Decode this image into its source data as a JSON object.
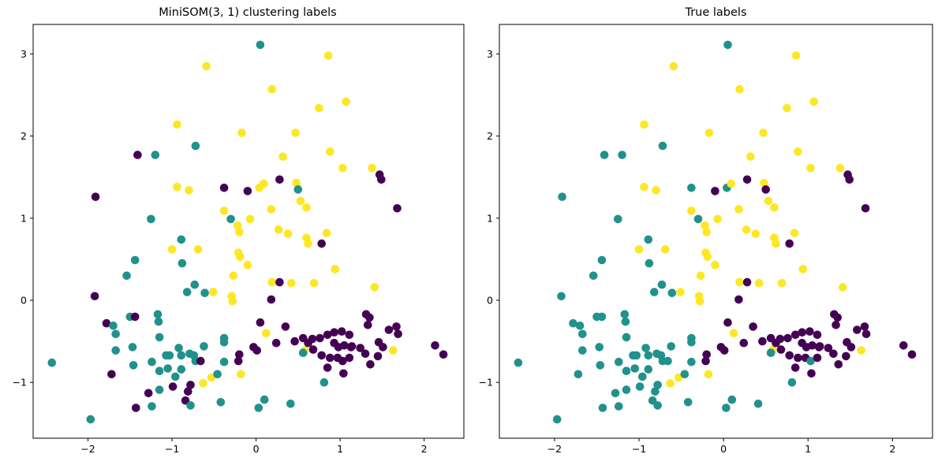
{
  "figure": {
    "background": "#ffffff"
  },
  "chart_data": {
    "type": "scatter",
    "panels": [
      {
        "id": "som",
        "title": "MiniSOM(3, 1) clustering labels",
        "color_field": 2
      },
      {
        "id": "true",
        "title": "True labels",
        "color_field": 3
      }
    ],
    "xlim": [
      -2.653,
      2.473
    ],
    "ylim": [
      -1.679,
      3.359
    ],
    "x_ticks": [
      -2,
      -1,
      0,
      1,
      2
    ],
    "y_ticks": [
      -1,
      0,
      1,
      2,
      3
    ],
    "grid": false,
    "legend": "none",
    "class_colors": [
      "#440154",
      "#21918c",
      "#fde725"
    ],
    "class_names": [
      "label-0-purple",
      "label-1-teal",
      "label-2-yellow"
    ],
    "point_format": [
      "x",
      "y",
      "som_label",
      "true_label"
    ],
    "points": [
      [
        -1.41,
        1.77,
        0,
        1
      ],
      [
        -1.2,
        1.77,
        1,
        1
      ],
      [
        0.05,
        3.11,
        1,
        1
      ],
      [
        -0.59,
        2.85,
        2,
        2
      ],
      [
        0.19,
        2.57,
        2,
        2
      ],
      [
        -0.94,
        2.14,
        2,
        2
      ],
      [
        -0.17,
        2.04,
        2,
        2
      ],
      [
        0.47,
        2.04,
        2,
        2
      ],
      [
        -0.72,
        1.88,
        1,
        1
      ],
      [
        0.32,
        1.75,
        2,
        2
      ],
      [
        0.86,
        2.98,
        2,
        2
      ],
      [
        1.07,
        2.42,
        2,
        2
      ],
      [
        0.75,
        2.34,
        2,
        2
      ],
      [
        0.88,
        1.81,
        2,
        2
      ],
      [
        -1.91,
        1.26,
        0,
        1
      ],
      [
        -1.25,
        0.99,
        1,
        1
      ],
      [
        -1.44,
        0.49,
        1,
        1
      ],
      [
        -1.54,
        0.3,
        1,
        1
      ],
      [
        -1.92,
        0.05,
        0,
        1
      ],
      [
        -0.94,
        1.38,
        2,
        2
      ],
      [
        -0.8,
        1.34,
        2,
        2
      ],
      [
        -0.38,
        1.37,
        0,
        1
      ],
      [
        -0.1,
        1.33,
        0,
        0
      ],
      [
        0.04,
        1.37,
        2,
        1
      ],
      [
        0.09,
        1.42,
        2,
        2
      ],
      [
        0.28,
        1.47,
        0,
        0
      ],
      [
        0.48,
        1.43,
        2,
        2
      ],
      [
        0.5,
        1.35,
        1,
        0
      ],
      [
        0.53,
        1.21,
        2,
        2
      ],
      [
        0.6,
        1.13,
        2,
        2
      ],
      [
        -0.38,
        1.09,
        2,
        2
      ],
      [
        0.18,
        1.11,
        2,
        2
      ],
      [
        -0.3,
        0.99,
        1,
        1
      ],
      [
        -0.22,
        0.91,
        2,
        2
      ],
      [
        -0.07,
        0.99,
        2,
        2
      ],
      [
        -0.2,
        0.83,
        2,
        2
      ],
      [
        0.27,
        0.86,
        2,
        2
      ],
      [
        0.38,
        0.81,
        2,
        2
      ],
      [
        0.6,
        0.76,
        2,
        2
      ],
      [
        0.62,
        0.69,
        2,
        2
      ],
      [
        -0.89,
        0.74,
        1,
        1
      ],
      [
        -1.0,
        0.62,
        2,
        2
      ],
      [
        -0.69,
        0.62,
        2,
        2
      ],
      [
        -0.88,
        0.45,
        1,
        1
      ],
      [
        -0.21,
        0.58,
        2,
        2
      ],
      [
        -0.19,
        0.53,
        2,
        2
      ],
      [
        -0.1,
        0.43,
        2,
        2
      ],
      [
        -0.27,
        0.3,
        2,
        2
      ],
      [
        -0.73,
        0.19,
        1,
        1
      ],
      [
        -0.82,
        0.1,
        1,
        1
      ],
      [
        -0.61,
        0.09,
        1,
        1
      ],
      [
        -0.51,
        0.1,
        2,
        2
      ],
      [
        0.19,
        0.22,
        2,
        2
      ],
      [
        0.28,
        0.22,
        0,
        0
      ],
      [
        0.42,
        0.21,
        2,
        2
      ],
      [
        -0.29,
        0.05,
        2,
        2
      ],
      [
        -0.28,
        -0.01,
        2,
        2
      ],
      [
        0.18,
        0.01,
        0,
        0
      ],
      [
        1.03,
        1.61,
        2,
        2
      ],
      [
        1.38,
        1.61,
        2,
        2
      ],
      [
        1.47,
        1.53,
        0,
        0
      ],
      [
        1.49,
        1.47,
        0,
        0
      ],
      [
        1.68,
        1.12,
        0,
        0
      ],
      [
        0.84,
        0.82,
        2,
        2
      ],
      [
        0.78,
        0.69,
        0,
        0
      ],
      [
        0.94,
        0.38,
        2,
        2
      ],
      [
        0.69,
        0.21,
        2,
        2
      ],
      [
        1.41,
        0.16,
        2,
        2
      ],
      [
        -1.5,
        -0.2,
        1,
        1
      ],
      [
        -1.78,
        -0.28,
        0,
        1
      ],
      [
        -1.7,
        -0.31,
        1,
        1
      ],
      [
        -1.67,
        -0.41,
        1,
        1
      ],
      [
        -1.44,
        -0.2,
        0,
        1
      ],
      [
        -1.17,
        -0.17,
        1,
        1
      ],
      [
        -1.16,
        -0.26,
        1,
        1
      ],
      [
        -1.15,
        -0.45,
        1,
        1
      ],
      [
        -1.67,
        -0.61,
        1,
        1
      ],
      [
        -1.47,
        -0.57,
        1,
        1
      ],
      [
        -1.07,
        -0.67,
        1,
        1
      ],
      [
        -2.43,
        -0.76,
        1,
        1
      ],
      [
        -1.46,
        -0.79,
        1,
        1
      ],
      [
        -1.24,
        -0.75,
        1,
        1
      ],
      [
        -1.72,
        -0.9,
        0,
        1
      ],
      [
        -1.15,
        -0.86,
        1,
        1
      ],
      [
        -1.28,
        -1.13,
        0,
        1
      ],
      [
        -1.15,
        -1.09,
        1,
        1
      ],
      [
        -1.24,
        -1.29,
        1,
        1
      ],
      [
        -1.43,
        -1.31,
        0,
        1
      ],
      [
        -1.97,
        -1.45,
        1,
        1
      ],
      [
        0.05,
        -0.27,
        0,
        0
      ],
      [
        0.35,
        -0.32,
        0,
        0
      ],
      [
        0.12,
        -0.4,
        2,
        2
      ],
      [
        0.24,
        -0.52,
        0,
        0
      ],
      [
        -0.92,
        -0.58,
        1,
        1
      ],
      [
        -0.62,
        -0.56,
        1,
        1
      ],
      [
        -1.03,
        -0.67,
        1,
        1
      ],
      [
        -0.89,
        -0.67,
        1,
        1
      ],
      [
        -0.79,
        -0.65,
        1,
        1
      ],
      [
        -0.74,
        -0.67,
        1,
        1
      ],
      [
        -0.72,
        -0.74,
        1,
        1
      ],
      [
        -0.66,
        -0.74,
        0,
        1
      ],
      [
        -0.38,
        -0.46,
        1,
        1
      ],
      [
        -0.38,
        -0.51,
        1,
        1
      ],
      [
        -0.38,
        -0.75,
        1,
        1
      ],
      [
        -0.2,
        -0.66,
        0,
        0
      ],
      [
        -0.21,
        -0.74,
        0,
        0
      ],
      [
        -0.03,
        -0.57,
        0,
        0
      ],
      [
        0.01,
        -0.61,
        0,
        0
      ],
      [
        -1.05,
        -0.83,
        1,
        1
      ],
      [
        -0.89,
        -0.84,
        1,
        1
      ],
      [
        -0.96,
        -0.93,
        1,
        1
      ],
      [
        -0.18,
        -0.9,
        2,
        2
      ],
      [
        -0.63,
        -1.01,
        2,
        2
      ],
      [
        -0.53,
        -0.94,
        2,
        2
      ],
      [
        -0.46,
        -0.9,
        1,
        1
      ],
      [
        -0.99,
        -1.05,
        0,
        1
      ],
      [
        -0.78,
        -1.03,
        0,
        1
      ],
      [
        -0.81,
        -1.11,
        0,
        1
      ],
      [
        -0.84,
        -1.22,
        0,
        1
      ],
      [
        -0.78,
        -1.28,
        1,
        1
      ],
      [
        -0.42,
        -1.24,
        1,
        1
      ],
      [
        0.1,
        -1.21,
        1,
        1
      ],
      [
        0.03,
        -1.31,
        1,
        1
      ],
      [
        0.41,
        -1.26,
        1,
        1
      ],
      [
        0.58,
        -0.61,
        2,
        2
      ],
      [
        0.56,
        -0.64,
        1,
        1
      ],
      [
        0.46,
        -0.5,
        0,
        0
      ],
      [
        0.56,
        -0.46,
        0,
        0
      ],
      [
        0.62,
        -0.52,
        0,
        0
      ],
      [
        0.67,
        -0.47,
        0,
        0
      ],
      [
        0.68,
        -0.6,
        0,
        0
      ],
      [
        0.76,
        -0.46,
        0,
        0
      ],
      [
        0.85,
        -0.42,
        0,
        0
      ],
      [
        0.93,
        -0.39,
        0,
        0
      ],
      [
        1.02,
        -0.38,
        0,
        0
      ],
      [
        1.11,
        -0.42,
        0,
        0
      ],
      [
        0.93,
        -0.52,
        0,
        0
      ],
      [
        0.98,
        -0.57,
        0,
        0
      ],
      [
        1.05,
        -0.55,
        0,
        0
      ],
      [
        1.13,
        -0.57,
        0,
        0
      ],
      [
        0.78,
        -0.67,
        0,
        0
      ],
      [
        0.88,
        -0.7,
        0,
        0
      ],
      [
        0.97,
        -0.7,
        0,
        0
      ],
      [
        1.03,
        -0.74,
        0,
        1
      ],
      [
        1.11,
        -0.7,
        0,
        0
      ],
      [
        0.85,
        -0.82,
        0,
        0
      ],
      [
        1.04,
        -0.89,
        0,
        0
      ],
      [
        0.81,
        -1.0,
        1,
        1
      ],
      [
        1.31,
        -0.17,
        0,
        0
      ],
      [
        1.35,
        -0.21,
        0,
        0
      ],
      [
        1.33,
        -0.3,
        0,
        0
      ],
      [
        1.58,
        -0.36,
        0,
        0
      ],
      [
        1.67,
        -0.32,
        0,
        0
      ],
      [
        1.69,
        -0.41,
        0,
        0
      ],
      [
        1.14,
        -0.56,
        0,
        0
      ],
      [
        1.24,
        -0.58,
        0,
        0
      ],
      [
        1.3,
        -0.65,
        0,
        0
      ],
      [
        1.46,
        -0.51,
        0,
        0
      ],
      [
        1.51,
        -0.57,
        0,
        0
      ],
      [
        1.63,
        -0.61,
        2,
        2
      ],
      [
        1.45,
        -0.68,
        0,
        0
      ],
      [
        1.36,
        -0.78,
        0,
        0
      ],
      [
        2.13,
        -0.55,
        0,
        0
      ],
      [
        2.23,
        -0.66,
        0,
        0
      ]
    ]
  }
}
